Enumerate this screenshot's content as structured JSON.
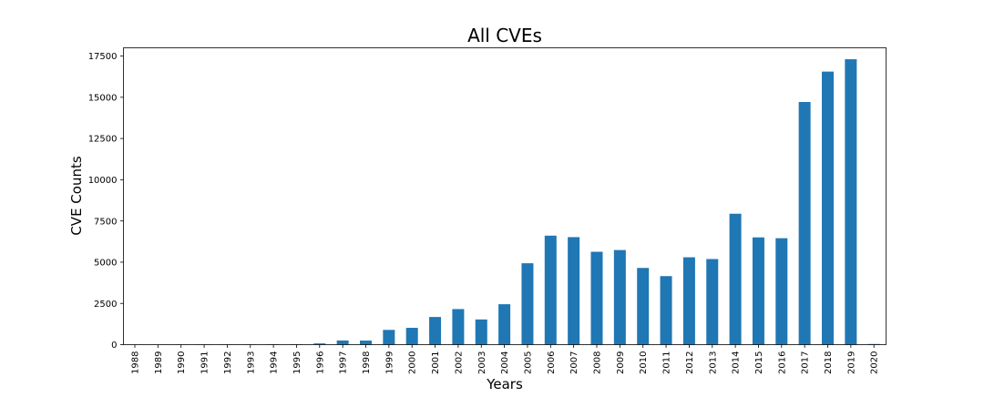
{
  "chart_data": {
    "type": "bar",
    "title": "All CVEs",
    "xlabel": "Years",
    "ylabel": "CVE Counts",
    "categories": [
      "1988",
      "1989",
      "1990",
      "1991",
      "1992",
      "1993",
      "1994",
      "1995",
      "1996",
      "1997",
      "1998",
      "1999",
      "2000",
      "2001",
      "2002",
      "2003",
      "2004",
      "2005",
      "2006",
      "2007",
      "2008",
      "2009",
      "2010",
      "2011",
      "2012",
      "2013",
      "2014",
      "2015",
      "2016",
      "2017",
      "2018",
      "2019",
      "2020"
    ],
    "values": [
      2,
      3,
      11,
      15,
      13,
      13,
      25,
      25,
      75,
      252,
      246,
      894,
      1020,
      1677,
      2156,
      1527,
      2451,
      4935,
      6610,
      6520,
      5632,
      5736,
      4652,
      4155,
      5297,
      5191,
      7939,
      6504,
      6454,
      14714,
      16557,
      17306,
      40
    ],
    "ylim": [
      0,
      18000
    ],
    "yticks": [
      0,
      2500,
      5000,
      7500,
      10000,
      12500,
      15000,
      17500
    ],
    "bar_color": "#1f77b4",
    "grid": false,
    "legend": "none"
  }
}
